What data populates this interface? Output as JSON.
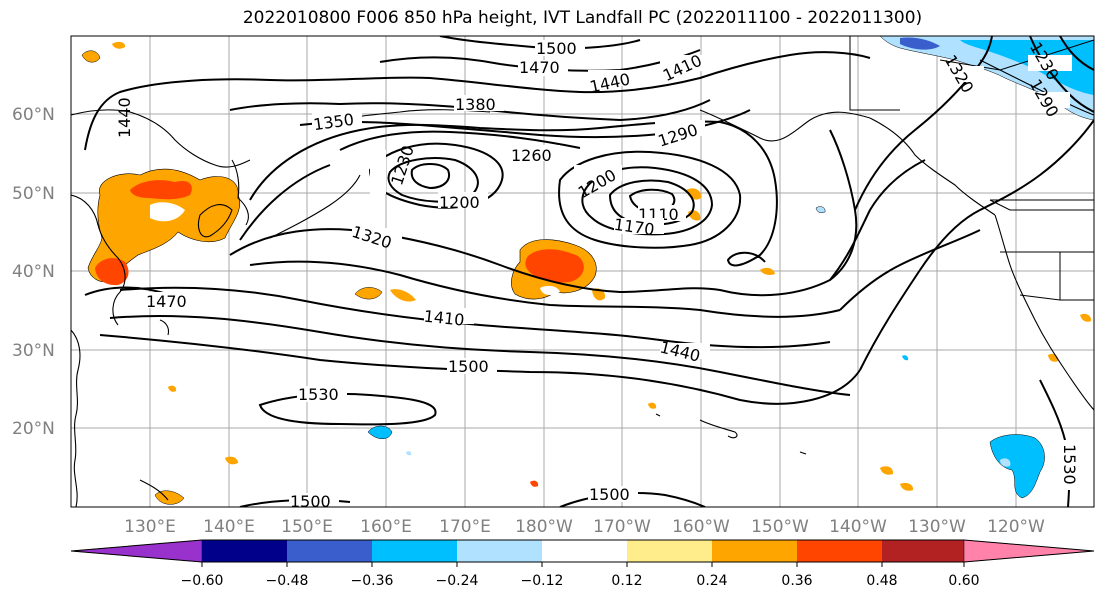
{
  "title": "2022010800 F006 850 hPa height, IVT Landfall PC (2022011100 - 2022011300)",
  "lat_labels": [
    "60°N",
    "50°N",
    "40°N",
    "30°N",
    "20°N"
  ],
  "lon_labels": [
    "130°E",
    "140°E",
    "150°E",
    "160°E",
    "170°E",
    "180°W",
    "170°W",
    "160°W",
    "150°W",
    "140°W",
    "130°W",
    "120°W"
  ],
  "contour_labels": [
    "1500",
    "1470",
    "1440",
    "1410",
    "1350",
    "1380",
    "1290",
    "1260",
    "1200",
    "1230",
    "1200",
    "1110",
    "1170",
    "1320",
    "1470",
    "1410",
    "1440",
    "1500",
    "1530",
    "1500",
    "1500",
    "1440",
    "1530",
    "1230",
    "1320",
    "1290"
  ],
  "colorbar": {
    "colors": [
      "#9932CC",
      "#00008B",
      "#3A5FCD",
      "#00BFFF",
      "#B0E2FF",
      "#FFFFFF",
      "#FFEC8B",
      "#FFA500",
      "#FF4500",
      "#B22222",
      "#FF82AB"
    ],
    "tick_labels": [
      "−0.60",
      "−0.48",
      "−0.36",
      "−0.24",
      "−0.12",
      "0.12",
      "0.24",
      "0.36",
      "0.48",
      "0.60"
    ]
  }
}
